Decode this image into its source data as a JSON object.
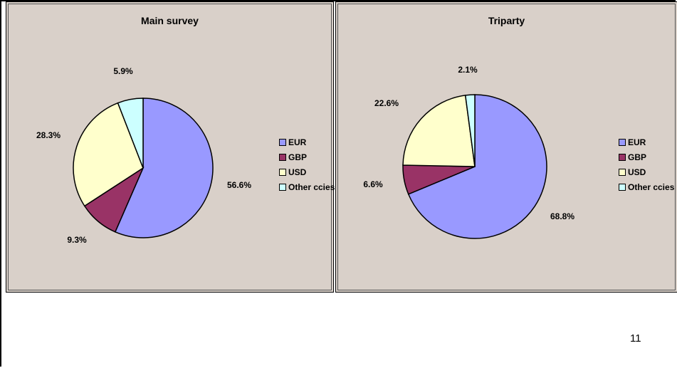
{
  "page_number": "11",
  "colors": {
    "EUR": "#9999ff",
    "GBP": "#993366",
    "USD": "#ffffcc",
    "Other ccies": "#ccffff"
  },
  "chart_data": [
    {
      "type": "pie",
      "title": "Main survey",
      "labels": [
        "EUR",
        "GBP",
        "USD",
        "Other ccies"
      ],
      "values": [
        56.6,
        9.3,
        28.3,
        5.9
      ],
      "value_labels": [
        "56.6%",
        "9.3%",
        "28.3%",
        "5.9%"
      ],
      "legend": [
        "EUR",
        "GBP",
        "USD",
        "Other ccies"
      ],
      "legend_position": "right"
    },
    {
      "type": "pie",
      "title": "Triparty",
      "labels": [
        "EUR",
        "GBP",
        "USD",
        "Other ccies"
      ],
      "values": [
        68.8,
        6.6,
        22.6,
        2.1
      ],
      "value_labels": [
        "68.8%",
        "6.6%",
        "22.6%",
        "2.1%"
      ],
      "legend": [
        "EUR",
        "GBP",
        "USD",
        "Other ccies"
      ],
      "legend_position": "right"
    }
  ]
}
